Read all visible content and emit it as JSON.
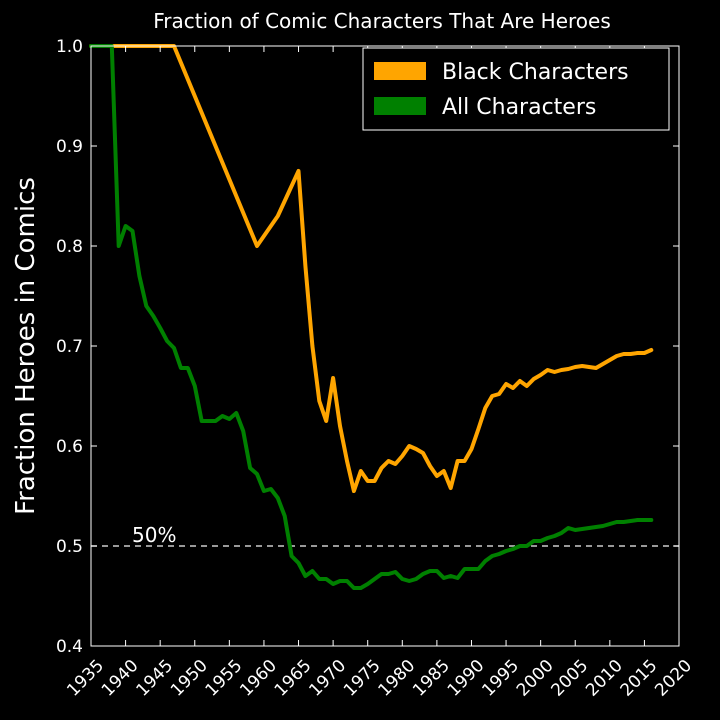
{
  "chart_data": {
    "type": "line",
    "title": "Fraction of Comic Characters That Are Heroes",
    "xlabel": "",
    "ylabel": "Fraction Heroes in Comics",
    "xlim": [
      1935,
      2020
    ],
    "ylim": [
      0.4,
      1.0
    ],
    "x_ticks": [
      "1935",
      "1940",
      "1945",
      "1950",
      "1955",
      "1960",
      "1965",
      "1970",
      "1975",
      "1980",
      "1985",
      "1990",
      "1995",
      "2000",
      "2005",
      "2010",
      "2015",
      "2020"
    ],
    "y_ticks": [
      "0.4",
      "0.5",
      "0.6",
      "0.7",
      "0.8",
      "0.9",
      "1.0"
    ],
    "grid": false,
    "legend_position": "top-right",
    "reference_line": {
      "y": 0.5,
      "label": "50%",
      "style": "dashed",
      "color": "#cccccc"
    },
    "series": [
      {
        "name": "Black Characters",
        "color": "#ffa500",
        "x": [
          1935,
          1947,
          1959,
          1962,
          1965,
          1966,
          1967,
          1968,
          1969,
          1970,
          1971,
          1972,
          1973,
          1974,
          1975,
          1976,
          1977,
          1978,
          1979,
          1980,
          1981,
          1982,
          1983,
          1984,
          1985,
          1986,
          1987,
          1988,
          1989,
          1990,
          1991,
          1992,
          1993,
          1994,
          1995,
          1996,
          1997,
          1998,
          1999,
          2000,
          2001,
          2002,
          2003,
          2004,
          2005,
          2006,
          2007,
          2008,
          2009,
          2010,
          2011,
          2012,
          2013,
          2014,
          2015,
          2016
        ],
        "y": [
          1.0,
          1.0,
          0.8,
          0.83,
          0.875,
          0.78,
          0.7,
          0.645,
          0.625,
          0.668,
          0.62,
          0.585,
          0.555,
          0.575,
          0.565,
          0.565,
          0.578,
          0.585,
          0.582,
          0.59,
          0.6,
          0.597,
          0.593,
          0.58,
          0.57,
          0.575,
          0.558,
          0.585,
          0.585,
          0.597,
          0.617,
          0.638,
          0.65,
          0.652,
          0.662,
          0.658,
          0.665,
          0.66,
          0.667,
          0.671,
          0.676,
          0.674,
          0.676,
          0.677,
          0.679,
          0.68,
          0.679,
          0.678,
          0.682,
          0.686,
          0.69,
          0.692,
          0.692,
          0.693,
          0.693,
          0.696
        ]
      },
      {
        "name": "All Characters",
        "color": "#008000",
        "x": [
          1935,
          1938,
          1939,
          1940,
          1941,
          1942,
          1943,
          1944,
          1945,
          1946,
          1947,
          1948,
          1949,
          1950,
          1951,
          1952,
          1953,
          1954,
          1955,
          1956,
          1957,
          1958,
          1959,
          1960,
          1961,
          1962,
          1963,
          1964,
          1965,
          1966,
          1967,
          1968,
          1969,
          1970,
          1971,
          1972,
          1973,
          1974,
          1975,
          1976,
          1977,
          1978,
          1979,
          1980,
          1981,
          1982,
          1983,
          1984,
          1985,
          1986,
          1987,
          1988,
          1989,
          1990,
          1991,
          1992,
          1993,
          1994,
          1995,
          1996,
          1997,
          1998,
          1999,
          2000,
          2001,
          2002,
          2003,
          2004,
          2005,
          2006,
          2007,
          2008,
          2009,
          2010,
          2011,
          2012,
          2013,
          2014,
          2015,
          2016
        ],
        "y": [
          1.0,
          1.0,
          0.8,
          0.82,
          0.815,
          0.77,
          0.74,
          0.73,
          0.718,
          0.705,
          0.698,
          0.678,
          0.678,
          0.66,
          0.625,
          0.625,
          0.625,
          0.63,
          0.627,
          0.633,
          0.615,
          0.578,
          0.572,
          0.555,
          0.557,
          0.548,
          0.53,
          0.49,
          0.483,
          0.47,
          0.475,
          0.467,
          0.467,
          0.462,
          0.465,
          0.465,
          0.458,
          0.458,
          0.462,
          0.467,
          0.472,
          0.472,
          0.474,
          0.467,
          0.465,
          0.467,
          0.472,
          0.475,
          0.475,
          0.468,
          0.47,
          0.468,
          0.477,
          0.477,
          0.477,
          0.485,
          0.49,
          0.492,
          0.495,
          0.497,
          0.5,
          0.5,
          0.505,
          0.505,
          0.508,
          0.51,
          0.513,
          0.518,
          0.516,
          0.517,
          0.518,
          0.519,
          0.52,
          0.522,
          0.524,
          0.524,
          0.525,
          0.526,
          0.526,
          0.526
        ]
      }
    ]
  }
}
